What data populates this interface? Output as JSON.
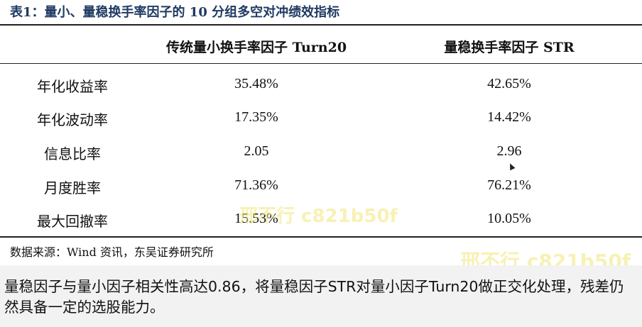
{
  "table": {
    "title": "表1：量小、量稳换手率因子的 10 分组多空对冲绩效指标",
    "headers": [
      "",
      "传统量小换手率因子 Turn20",
      "量稳换手率因子 STR"
    ],
    "rows": [
      {
        "label": "年化收益率",
        "turn20": "35.48%",
        "str": "42.65%"
      },
      {
        "label": "年化波动率",
        "turn20": "17.35%",
        "str": "14.42%"
      },
      {
        "label": "信息比率",
        "turn20": "2.05",
        "str": "2.96"
      },
      {
        "label": "月度胜率",
        "turn20": "71.36%",
        "str": "76.21%"
      },
      {
        "label": "最大回撤率",
        "turn20": "15.53%",
        "str": "10.05%"
      }
    ],
    "source": "数据来源：Wind 资讯，东吴证券研究所"
  },
  "watermarks": [
    "邢不行 c821b50f",
    "邢不行 c821b50f"
  ],
  "caption": "量稳因子与量小因子相关性高达0.86，将量稳因子STR对量小因子Turn20做正交化处理，残差仍然具备一定的选股能力。"
}
